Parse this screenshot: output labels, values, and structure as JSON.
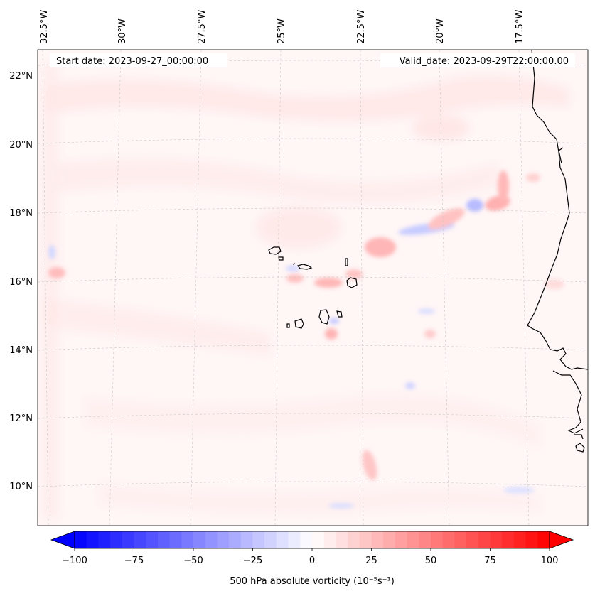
{
  "map": {
    "start_label": "Start date: 2023-09-27_00:00:00",
    "valid_label": "Valid_date: 2023-09-29T22:00:00.00",
    "lon_labels": [
      "32.5°W",
      "30°W",
      "27.5°W",
      "25°W",
      "22.5°W",
      "20°W",
      "17.5°W"
    ],
    "lat_labels": [
      "22°N",
      "20°N",
      "18°N",
      "16°N",
      "14°N",
      "12°N",
      "10°N"
    ]
  },
  "colorbar": {
    "label": "500 hPa absolute vorticity (10⁻⁵s⁻¹)",
    "ticks": [
      "−100",
      "−75",
      "−50",
      "−25",
      "0",
      "25",
      "50",
      "75",
      "100"
    ],
    "min": -100,
    "max": 100,
    "colors": {
      "negative": "#0000ff",
      "zero": "#ffffff",
      "positive": "#ff0000"
    }
  }
}
